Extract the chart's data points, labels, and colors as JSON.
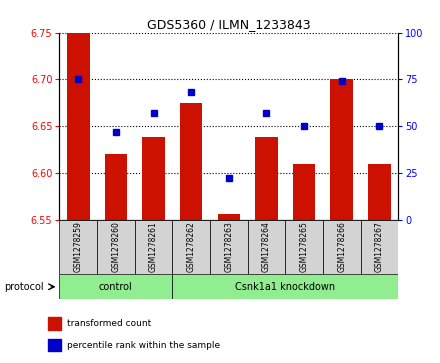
{
  "title": "GDS5360 / ILMN_1233843",
  "samples": [
    "GSM1278259",
    "GSM1278260",
    "GSM1278261",
    "GSM1278262",
    "GSM1278263",
    "GSM1278264",
    "GSM1278265",
    "GSM1278266",
    "GSM1278267"
  ],
  "red_values": [
    6.75,
    6.62,
    6.638,
    6.675,
    6.556,
    6.638,
    6.61,
    6.7,
    6.61
  ],
  "blue_values": [
    75,
    47,
    57,
    68,
    22,
    57,
    50,
    74,
    50
  ],
  "ylim": [
    6.55,
    6.75
  ],
  "ylim_right": [
    0,
    100
  ],
  "yticks_left": [
    6.55,
    6.6,
    6.65,
    6.7,
    6.75
  ],
  "yticks_right": [
    0,
    25,
    50,
    75,
    100
  ],
  "bar_color": "#CC1100",
  "dot_color": "#0000CC",
  "bar_bottom": 6.55,
  "protocol_groups": [
    {
      "label": "control",
      "start": 0,
      "end": 3
    },
    {
      "label": "Csnk1a1 knockdown",
      "start": 3,
      "end": 9
    }
  ],
  "protocol_label": "protocol",
  "group_bg_color": "#90EE90",
  "sample_bg_color": "#D3D3D3",
  "legend_items": [
    {
      "color": "#CC1100",
      "label": "transformed count"
    },
    {
      "color": "#0000CC",
      "label": "percentile rank within the sample"
    }
  ]
}
